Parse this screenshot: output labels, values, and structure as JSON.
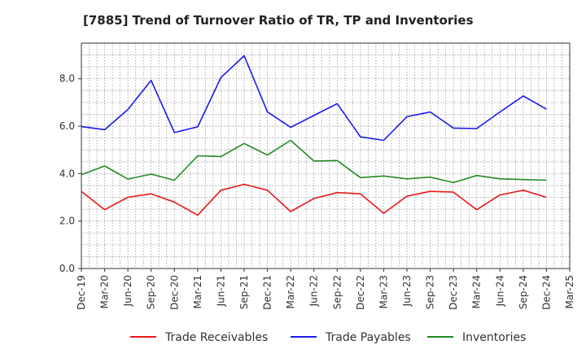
{
  "chart_data": {
    "type": "line",
    "title": "[7885]  Trend of Turnover Ratio of TR, TP and Inventories",
    "xlabel": "",
    "ylabel": "",
    "x_tick_labels": [
      "Dec-19",
      "Mar-20",
      "Jun-20",
      "Sep-20",
      "Dec-20",
      "Mar-21",
      "Jun-21",
      "Sep-21",
      "Dec-21",
      "Mar-22",
      "Jun-22",
      "Sep-22",
      "Dec-22",
      "Mar-23",
      "Jun-23",
      "Sep-23",
      "Dec-23",
      "Mar-24",
      "Jun-24",
      "Sep-24",
      "Dec-24",
      "Mar-25"
    ],
    "y_tick_labels": [
      "0.0",
      "2.0",
      "4.0",
      "6.0",
      "8.0"
    ],
    "ylim": [
      0,
      9.5
    ],
    "x": [
      "Dec-19",
      "Mar-20",
      "Jun-20",
      "Sep-20",
      "Dec-20",
      "Mar-21",
      "Jun-21",
      "Sep-21",
      "Dec-21",
      "Mar-22",
      "Jun-22",
      "Sep-22",
      "Dec-22",
      "Mar-23",
      "Jun-23",
      "Sep-23",
      "Dec-23",
      "Mar-24",
      "Jun-24",
      "Sep-24",
      "Dec-24"
    ],
    "grid": true,
    "legend_position": "bottom",
    "series": [
      {
        "name": "Trade Receivables",
        "color": "#e8191a",
        "values": [
          3.25,
          2.48,
          3.0,
          3.15,
          2.8,
          2.25,
          3.3,
          3.55,
          3.3,
          2.4,
          2.95,
          3.2,
          3.15,
          2.33,
          3.05,
          3.25,
          3.22,
          2.48,
          3.1,
          3.3,
          3.0
        ]
      },
      {
        "name": "Trade Payables",
        "color": "#1a1aeb",
        "values": [
          5.98,
          5.85,
          6.7,
          7.93,
          5.73,
          5.97,
          8.05,
          8.97,
          6.6,
          5.95,
          6.45,
          6.95,
          5.55,
          5.4,
          6.4,
          6.6,
          5.92,
          5.9,
          6.6,
          7.27,
          6.72
        ]
      },
      {
        "name": "Inventories",
        "color": "#248a24",
        "values": [
          3.95,
          4.32,
          3.77,
          3.98,
          3.72,
          4.75,
          4.72,
          5.27,
          4.78,
          5.4,
          4.53,
          4.55,
          3.83,
          3.9,
          3.78,
          3.85,
          3.62,
          3.92,
          3.78,
          3.75,
          3.72
        ]
      }
    ]
  }
}
